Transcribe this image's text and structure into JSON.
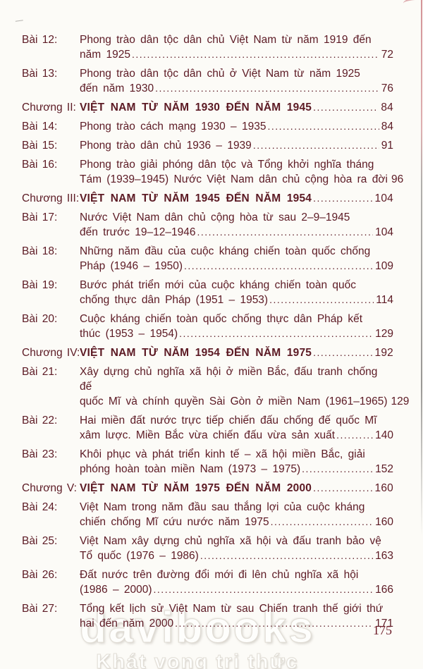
{
  "page": {
    "folio_number": "175",
    "background_color": "#fcfbf7",
    "text_color": "#5c1a24"
  },
  "watermark": {
    "brand": "davibooks",
    "tagline": "Khát vọng tri thức"
  },
  "toc": {
    "entries": [
      {
        "type": "lesson",
        "label": "Bài 12:",
        "lines": [
          "Phong trào dân tộc dân chủ Việt Nam từ năm 1919 đến",
          "năm 1925"
        ],
        "page": "72"
      },
      {
        "type": "lesson",
        "label": "Bài 13:",
        "lines": [
          "Phong trào dân tộc dân chủ ở Việt Nam từ năm 1925",
          "đến năm 1930"
        ],
        "page": "76"
      },
      {
        "type": "chapter",
        "label": "Chương II:",
        "lines": [
          "VIỆT NAM TỪ NĂM 1930 ĐẾN NĂM 1945"
        ],
        "page": "84"
      },
      {
        "type": "lesson",
        "label": "Bài 14:",
        "lines": [
          "Phong trào cách mạng 1930 – 1935"
        ],
        "page": "84"
      },
      {
        "type": "lesson",
        "label": "Bài 15:",
        "lines": [
          "Phong trào dân chủ 1936 – 1939"
        ],
        "page": "91"
      },
      {
        "type": "lesson",
        "label": "Bài 16:",
        "lines": [
          "Phong trào giải phóng dân tộc và Tổng khởi nghĩa tháng",
          "Tám (1939–1945) Nước Việt Nam dân chủ cộng hòa ra đời"
        ],
        "page": "96"
      },
      {
        "type": "chapter",
        "label": "Chương III:",
        "lines": [
          "VIỆT NAM TỪ NĂM 1945 ĐẾN NĂM 1954"
        ],
        "page": "104"
      },
      {
        "type": "lesson",
        "label": "Bài 17:",
        "lines": [
          "Nước Việt Nam dân chủ cộng hòa từ sau 2–9–1945",
          "đến trước 19–12–1946"
        ],
        "page": "104"
      },
      {
        "type": "lesson",
        "label": "Bài 18:",
        "lines": [
          "Những năm đầu của cuộc kháng chiến toàn quốc chống",
          "Pháp (1946 – 1950)"
        ],
        "page": "109"
      },
      {
        "type": "lesson",
        "label": "Bài 19:",
        "lines": [
          "Bước phát triển mới của cuộc kháng chiến toàn quốc",
          "chống thực dân Pháp (1951 – 1953)"
        ],
        "page": "114"
      },
      {
        "type": "lesson",
        "label": "Bài 20:",
        "lines": [
          "Cuộc kháng chiến toàn quốc chống thực dân Pháp kết",
          "thúc (1953 – 1954)"
        ],
        "page": "129"
      },
      {
        "type": "chapter",
        "label": "Chương IV:",
        "lines": [
          "VIỆT NAM TỪ NĂM 1954 ĐẾN NĂM 1975"
        ],
        "page": "192"
      },
      {
        "type": "lesson",
        "label": "Bài 21:",
        "lines": [
          "Xây dựng chủ nghĩa xã hội ở miền Bắc, đấu tranh chống đế",
          "quốc Mĩ và chính quyền Sài Gòn ở miền Nam (1961–1965)"
        ],
        "page": "129"
      },
      {
        "type": "lesson",
        "label": "Bài 22:",
        "lines": [
          "Hai miền đất nước trực tiếp chiến đấu chống đế quốc Mĩ",
          "xâm lược. Miền Bắc vừa chiến đấu vừa sản xuất"
        ],
        "page": "140"
      },
      {
        "type": "lesson",
        "label": "Bài 23:",
        "lines": [
          "Khôi phục và phát triển kinh tế – xã hội miền Bắc, giải",
          "phóng hoàn toàn miền Nam (1973 – 1975)"
        ],
        "page": "152"
      },
      {
        "type": "chapter",
        "label": "Chương V:",
        "lines": [
          "VIỆT NAM TỪ NĂM 1975 ĐẾN NĂM 2000"
        ],
        "page": "160"
      },
      {
        "type": "lesson",
        "label": "Bài 24:",
        "lines": [
          "Việt Nam trong năm đầu sau thắng lợi của cuộc kháng",
          "chiến chống Mĩ cứu nước năm 1975"
        ],
        "page": "160"
      },
      {
        "type": "lesson",
        "label": "Bài 25:",
        "lines": [
          "Việt Nam xây dựng chủ nghĩa xã hội và đấu tranh bảo vệ",
          "Tổ quốc (1976 – 1986)"
        ],
        "page": "163"
      },
      {
        "type": "lesson",
        "label": "Bài 26:",
        "lines": [
          "Đất nước trên đường đổi mới đi lên chủ nghĩa xã hội",
          "(1986 – 2000)"
        ],
        "page": "166"
      },
      {
        "type": "lesson",
        "label": "Bài 27:",
        "lines": [
          "Tổng kết lịch sử Việt Nam từ sau Chiến tranh thế giới thứ",
          "hai đến năm 2000"
        ],
        "page": "171"
      }
    ]
  }
}
